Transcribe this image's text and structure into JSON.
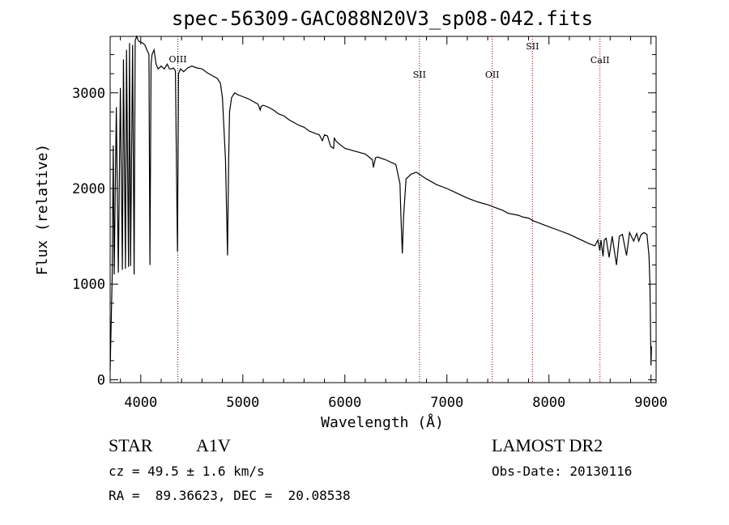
{
  "chart_data": {
    "type": "line",
    "title": "spec-56309-GAC088N20V3_sp08-042.fits",
    "xlabel": "Wavelength (Å)",
    "ylabel": "Flux (relative)",
    "xlim": [
      3700,
      9050
    ],
    "ylim": [
      -30,
      3590
    ],
    "xticks": [
      {
        "value": 4000,
        "label": "4000"
      },
      {
        "value": 5000,
        "label": "5000"
      },
      {
        "value": 6000,
        "label": "6000"
      },
      {
        "value": 7000,
        "label": "7000"
      },
      {
        "value": 8000,
        "label": "8000"
      },
      {
        "value": 9000,
        "label": "9000"
      }
    ],
    "yticks": [
      {
        "value": 0,
        "label": "0"
      },
      {
        "value": 1000,
        "label": "1000"
      },
      {
        "value": 2000,
        "label": "2000"
      },
      {
        "value": 3000,
        "label": "3000"
      }
    ],
    "grid": false,
    "line_color": "#000000",
    "marker_color": "#8b0000",
    "line_markers": [
      {
        "label": "OIII",
        "wavelength": 4363
      },
      {
        "label": "SII",
        "wavelength": 6731
      },
      {
        "label": "OII",
        "wavelength": 7444
      },
      {
        "label": "SII",
        "wavelength": 7838
      },
      {
        "label": "CaII",
        "wavelength": 8500
      }
    ],
    "series": [
      {
        "x": [
          3700,
          3720,
          3730,
          3740,
          3760,
          3780,
          3800,
          3820,
          3830,
          3850,
          3860,
          3880,
          3890,
          3900,
          3920,
          3935,
          3945,
          3960,
          3970,
          3980,
          4000,
          4020,
          4040,
          4060,
          4080,
          4090,
          4101,
          4110,
          4130,
          4150,
          4170,
          4200,
          4230,
          4260,
          4280,
          4300,
          4320,
          4340,
          4350,
          4360,
          4370,
          4390,
          4420,
          4460,
          4500,
          4550,
          4600,
          4650,
          4700,
          4750,
          4780,
          4800,
          4830,
          4850,
          4861,
          4870,
          4890,
          4920,
          4950,
          5000,
          5050,
          5100,
          5150,
          5170,
          5180,
          5200,
          5250,
          5300,
          5350,
          5400,
          5450,
          5500,
          5550,
          5600,
          5650,
          5700,
          5750,
          5780,
          5800,
          5830,
          5860,
          5890,
          5896,
          5910,
          5950,
          6000,
          6100,
          6200,
          6270,
          6280,
          6300,
          6320,
          6400,
          6500,
          6540,
          6550,
          6563,
          6575,
          6600,
          6650,
          6700,
          6800,
          6900,
          7000,
          7100,
          7200,
          7300,
          7400,
          7500,
          7550,
          7600,
          7650,
          7700,
          7750,
          7800,
          7850,
          7900,
          8000,
          8100,
          8200,
          8300,
          8400,
          8450,
          8480,
          8498,
          8510,
          8530,
          8542,
          8560,
          8590,
          8620,
          8662,
          8690,
          8720,
          8760,
          8790,
          8830,
          8860,
          8880,
          8900,
          8930,
          8960,
          8980,
          8990,
          9000,
          9005
        ],
        "y": [
          100,
          1080,
          2450,
          1100,
          2850,
          1120,
          3050,
          1150,
          3350,
          1160,
          3450,
          1180,
          3520,
          1190,
          3500,
          1100,
          3550,
          3600,
          3560,
          3540,
          3530,
          3520,
          3500,
          3450,
          3400,
          1200,
          3300,
          3400,
          3450,
          3300,
          3250,
          3280,
          3250,
          3300,
          3250,
          3250,
          3260,
          3230,
          2200,
          1340,
          3200,
          3250,
          3220,
          3260,
          3280,
          3260,
          3250,
          3210,
          3180,
          3150,
          3100,
          2950,
          2300,
          1300,
          2300,
          2800,
          2950,
          3000,
          2980,
          2960,
          2940,
          2910,
          2880,
          2820,
          2860,
          2870,
          2850,
          2820,
          2780,
          2760,
          2720,
          2690,
          2660,
          2640,
          2600,
          2580,
          2560,
          2500,
          2560,
          2550,
          2440,
          2420,
          2530,
          2500,
          2460,
          2420,
          2390,
          2360,
          2300,
          2220,
          2320,
          2330,
          2300,
          2250,
          2050,
          1700,
          1320,
          1700,
          2100,
          2150,
          2170,
          2100,
          2040,
          2000,
          1950,
          1900,
          1860,
          1830,
          1790,
          1770,
          1740,
          1730,
          1720,
          1700,
          1690,
          1660,
          1640,
          1600,
          1560,
          1520,
          1470,
          1420,
          1400,
          1460,
          1350,
          1460,
          1290,
          1460,
          1480,
          1280,
          1500,
          1200,
          1500,
          1520,
          1300,
          1540,
          1450,
          1530,
          1450,
          1510,
          1540,
          1520,
          1300,
          1000,
          150,
          350
        ]
      }
    ]
  },
  "info": {
    "object_type": "STAR",
    "subclass": "A1V",
    "survey": "LAMOST DR2",
    "redshift": "cz = 49.5 ± 1.6 km/s",
    "obs_date": "Obs-Date: 20130116",
    "coords": "RA =  89.36623, DEC =  20.08538"
  }
}
